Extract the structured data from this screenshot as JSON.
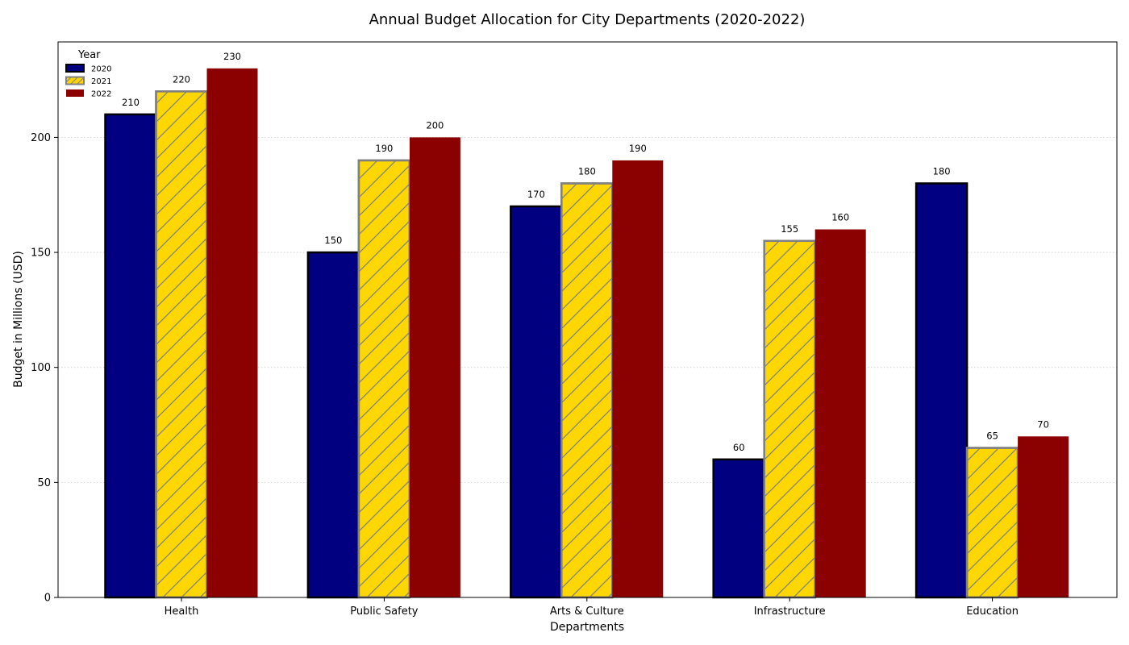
{
  "chart_data": {
    "type": "bar",
    "title": "Annual Budget Allocation for City Departments (2020-2022)",
    "xlabel": "Departments",
    "ylabel": "Budget in Millions (USD)",
    "categories": [
      "Health",
      "Public Safety",
      "Arts & Culture",
      "Infrastructure",
      "Education"
    ],
    "series": [
      {
        "name": "2020",
        "values": [
          210,
          150,
          170,
          60,
          180
        ],
        "color": "#000080",
        "edge": "#000000",
        "hatch": false
      },
      {
        "name": "2021",
        "values": [
          220,
          190,
          180,
          155,
          65
        ],
        "color": "#FFD700",
        "edge": "#808080",
        "hatch": true
      },
      {
        "name": "2022",
        "values": [
          230,
          200,
          190,
          160,
          70
        ],
        "color": "#8B0000",
        "edge": "#8B0000",
        "hatch": false
      }
    ],
    "ylim": [
      0,
      241.5
    ],
    "yticks": [
      0,
      50,
      100,
      150,
      200
    ],
    "grid": "y-dotted",
    "legend": {
      "title": "Year",
      "placement": "top-left"
    }
  }
}
